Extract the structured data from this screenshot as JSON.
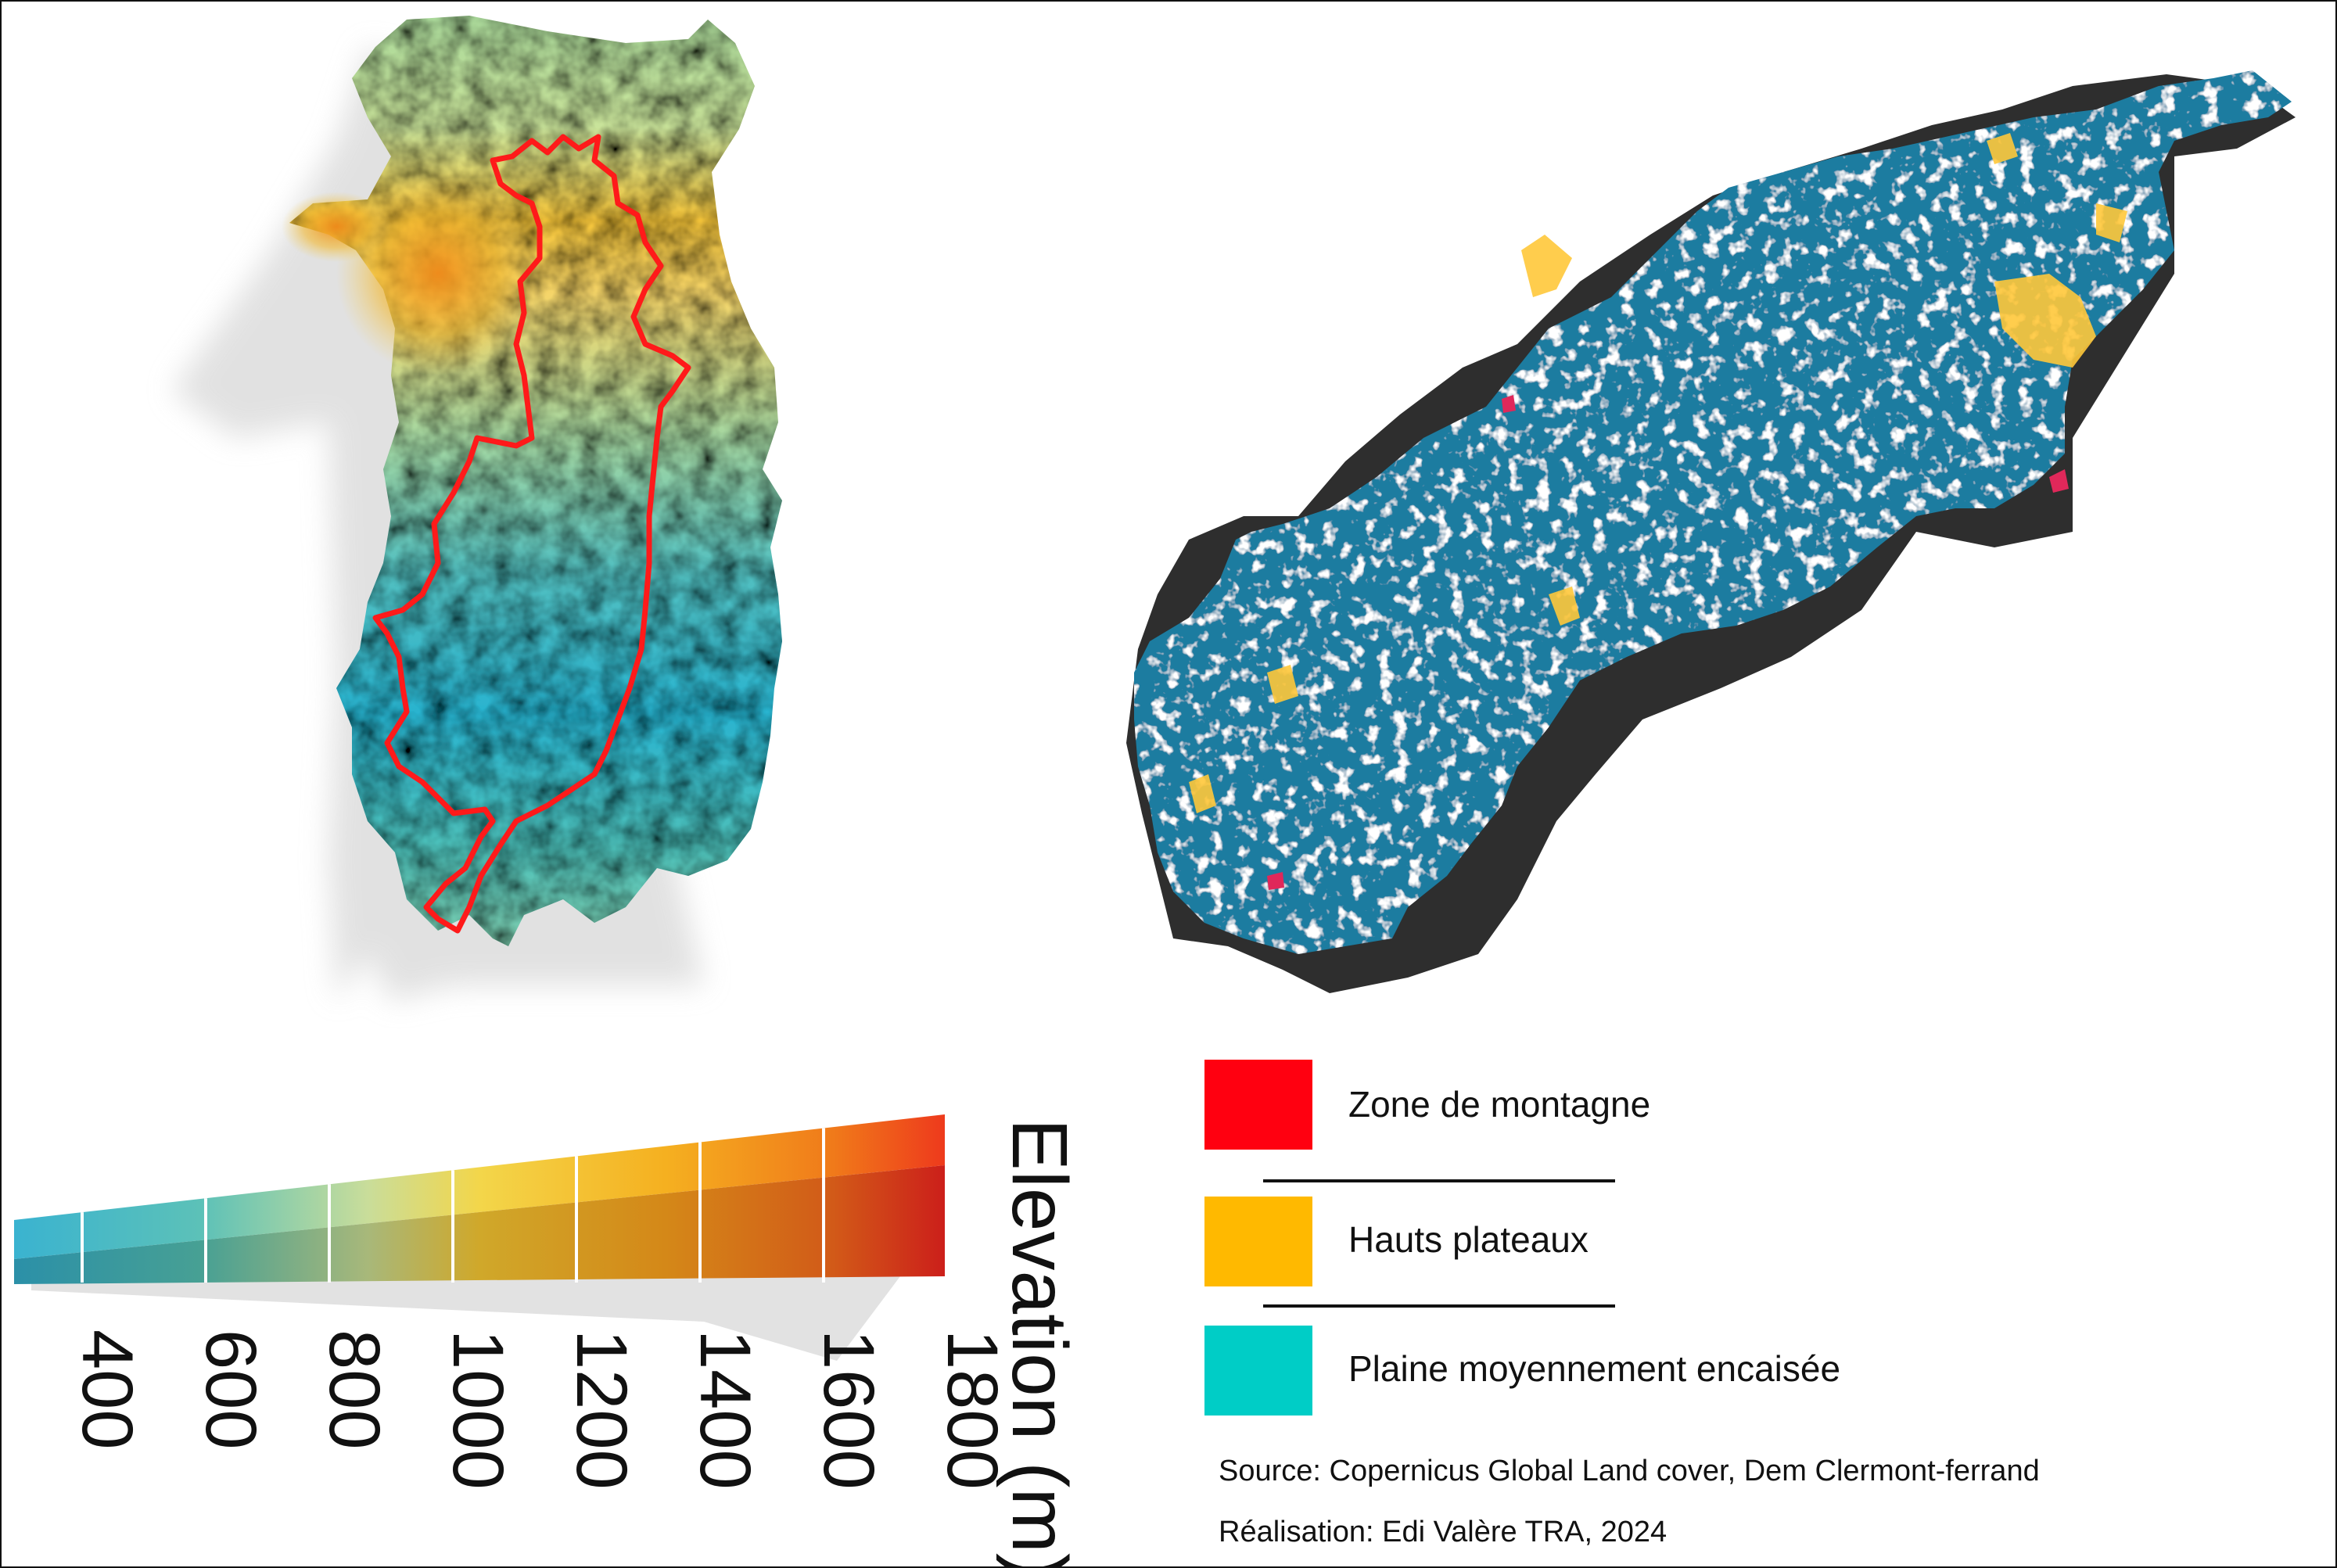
{
  "colors": {
    "zone_de_montagne": "#ff0010",
    "hauts_plateaux": "#ffb900",
    "plaine": "#00cdc6",
    "boundary": "#ff1a1a",
    "shadow": "#2e2e2e",
    "terrain_blue": "#1e7fa3"
  },
  "elevation_legend": {
    "title": "Elevation (m)",
    "ticks": [
      "400",
      "600",
      "800",
      "1000",
      "1200",
      "1400",
      "1600",
      "1800"
    ]
  },
  "landcover_legend": {
    "items": [
      {
        "label": "Zone de montagne"
      },
      {
        "label": "Hauts plateaux"
      },
      {
        "label": "Plaine moyennement encaisée"
      }
    ]
  },
  "credits": {
    "source": "Source: Copernicus Global Land cover, Dem Clermont-ferrand",
    "realisation": "Réalisation: Edi Valère TRA, 2024"
  }
}
